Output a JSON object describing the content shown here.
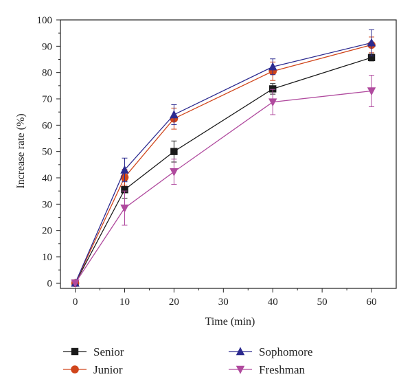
{
  "chart_data": {
    "type": "line",
    "xlabel": "Time (min)",
    "ylabel": "Increase rate (%)",
    "x": [
      0,
      10,
      20,
      40,
      60
    ],
    "xlim": [
      -3,
      65
    ],
    "ylim": [
      -2,
      100
    ],
    "xticks": [
      0,
      10,
      20,
      30,
      40,
      50,
      60
    ],
    "yticks": [
      0,
      10,
      20,
      30,
      40,
      50,
      60,
      70,
      80,
      90,
      100
    ],
    "grid": false,
    "error_bars": true,
    "legend_position": "bottom",
    "series": [
      {
        "name": "Senior",
        "color": "#1a1a1a",
        "marker": "square",
        "values": [
          0,
          35.5,
          50,
          73.8,
          85.7
        ],
        "errors": [
          0,
          3.3,
          4,
          2,
          1.3
        ]
      },
      {
        "name": "Junior",
        "color": "#d0451b",
        "marker": "circle",
        "values": [
          0,
          40.2,
          62.5,
          80.5,
          90.5
        ],
        "errors": [
          0,
          3,
          4,
          3.5,
          3
        ]
      },
      {
        "name": "Sophomore",
        "color": "#2c2a8f",
        "marker": "triangle-up",
        "values": [
          0,
          43,
          64,
          82.2,
          91.3
        ],
        "errors": [
          0,
          4.5,
          3.8,
          3,
          5
        ]
      },
      {
        "name": "Freshman",
        "color": "#b04a9e",
        "marker": "triangle-down",
        "values": [
          0,
          28.5,
          42.3,
          68.8,
          73
        ],
        "errors": [
          0,
          6.5,
          4.8,
          4.8,
          6
        ]
      }
    ]
  }
}
